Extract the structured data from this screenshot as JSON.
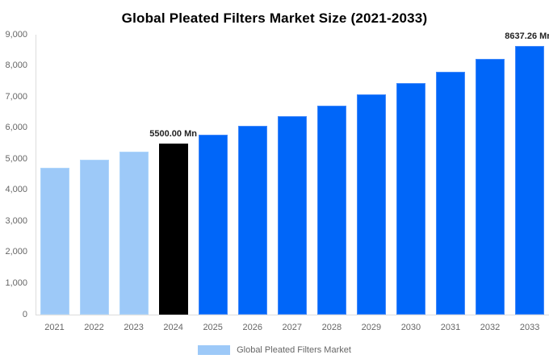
{
  "chart_data": {
    "type": "bar",
    "title": "Global Pleated Filters Market Size (2021-2033)",
    "legend": "Global Pleated Filters Market",
    "legend_position": "bottom",
    "grid": false,
    "unit": "Mn",
    "categories": [
      "2021",
      "2022",
      "2023",
      "2024",
      "2025",
      "2026",
      "2027",
      "2028",
      "2029",
      "2030",
      "2031",
      "2032",
      "2033"
    ],
    "values": [
      4732,
      4975,
      5231,
      5500,
      5783,
      6080,
      6393,
      6722,
      7068,
      7432,
      7814,
      8216,
      8637.26
    ],
    "bar_roles": [
      "historical",
      "historical",
      "historical",
      "base",
      "forecast",
      "forecast",
      "forecast",
      "forecast",
      "forecast",
      "forecast",
      "forecast",
      "forecast",
      "forecast"
    ],
    "ylim": [
      0,
      9000
    ],
    "ytick_values": [
      0,
      1000,
      2000,
      3000,
      4000,
      5000,
      6000,
      7000,
      8000,
      9000
    ],
    "ytick_labels": [
      "0",
      "1,000",
      "2,000",
      "3,000",
      "4,000",
      "5,000",
      "6,000",
      "7,000",
      "8,000",
      "9,000"
    ],
    "annotations": [
      {
        "index": 3,
        "text": "5500.00 Mn",
        "align": "center"
      },
      {
        "index": 12,
        "text": "8637.26 Mn",
        "align": "right-edge"
      }
    ],
    "colors": {
      "historical": "#9dc9f8",
      "historical_border": "#aed5fb",
      "base": "#000000",
      "base_border": "#000000",
      "forecast": "#0066f9",
      "forecast_border": "#4189fa",
      "axis": "#dcdcdc",
      "tick_text": "#666666",
      "annotation_text": "#222222",
      "title_text": "#000000",
      "legend_text": "#666666"
    }
  }
}
